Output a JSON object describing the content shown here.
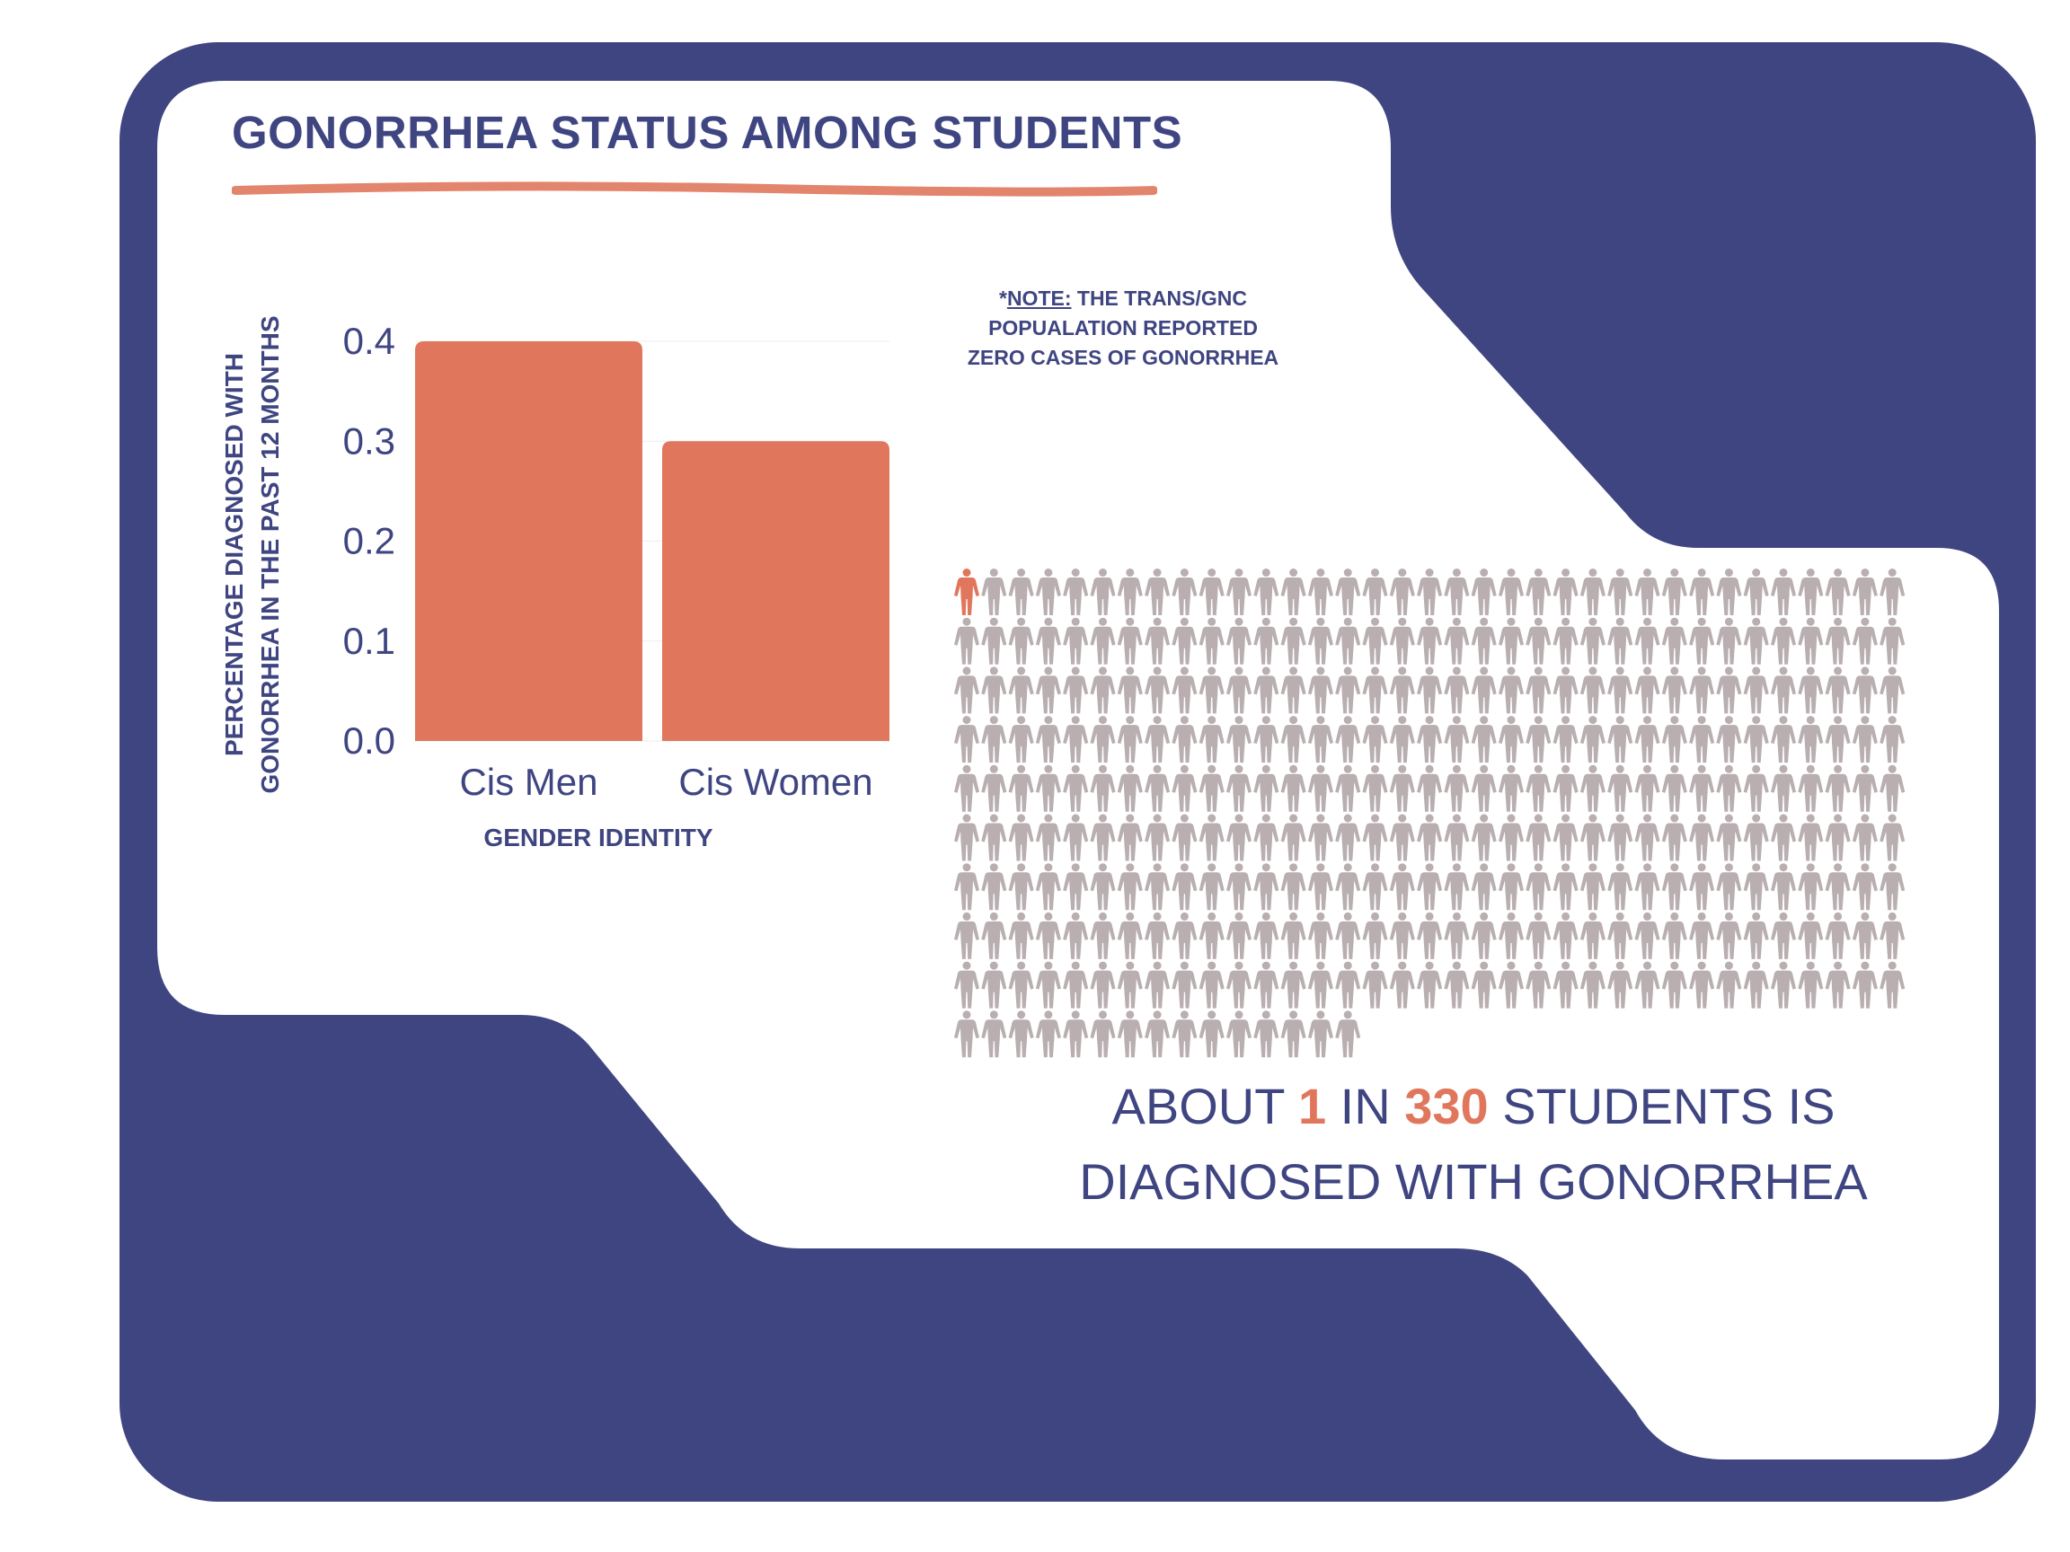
{
  "title": "GONORRHEA STATUS AMONG STUDENTS",
  "note": {
    "prefix": "*",
    "label": "NOTE:",
    "line1": "THE TRANS/GNC",
    "line2": "POPUALATION REPORTED",
    "line3": "ZERO CASES OF GONORRHEA"
  },
  "colors": {
    "navy": "#3f4581",
    "accent": "#e0775d",
    "icon_gray": "#b9aeb0",
    "white": "#ffffff"
  },
  "chart_data": {
    "type": "bar",
    "categories": [
      "Cis Men",
      "Cis Women"
    ],
    "values": [
      0.4,
      0.3
    ],
    "xlabel": "GENDER IDENTITY",
    "ylabel_line1": "PERCENTAGE DIAGNOSED WITH",
    "ylabel_line2": "GONORRHEA IN THE PAST 12 MONTHS",
    "ylim": [
      0,
      0.4
    ],
    "yticks": [
      "0.0",
      "0.1",
      "0.2",
      "0.3",
      "0.4"
    ],
    "grid": true
  },
  "pictograph": {
    "icon": "person-icon",
    "highlighted_count": 1,
    "full_rows": 9,
    "per_row": 35,
    "last_row_count": 15
  },
  "stat": {
    "w1": "ABOUT",
    "n1": "1",
    "w2": "IN",
    "n2": "330",
    "w3": "STUDENTS IS",
    "line2": "DIAGNOSED WITH GONORRHEA"
  }
}
